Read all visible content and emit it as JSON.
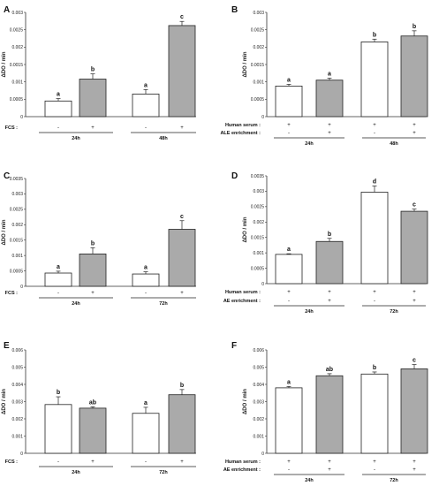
{
  "chart_data": [
    {
      "type": "bar",
      "panel": "A",
      "ylabel": "ΔDO / min",
      "ylim": [
        0,
        0.003
      ],
      "yticks": [
        "0",
        "0.0005",
        "0.001",
        "0.0015",
        "0.002",
        "0.0025",
        "0.003"
      ],
      "row_labels": [
        "FCS :"
      ],
      "row_signs": [
        [
          "-",
          "+",
          "-",
          "+"
        ]
      ],
      "groups": [
        "24h",
        "48h"
      ],
      "bars": [
        {
          "value": 0.00045,
          "error": 7e-05,
          "fill": "#ffffff",
          "sig": "a"
        },
        {
          "value": 0.00108,
          "error": 0.00015,
          "fill": "#aaaaaa",
          "sig": "b"
        },
        {
          "value": 0.00065,
          "error": 0.00013,
          "fill": "#ffffff",
          "sig": "a"
        },
        {
          "value": 0.00262,
          "error": 0.00012,
          "fill": "#aaaaaa",
          "sig": "c"
        }
      ]
    },
    {
      "type": "bar",
      "panel": "B",
      "ylabel": "ΔDO / min",
      "ylim": [
        0,
        0.003
      ],
      "yticks": [
        "0",
        "0.0005",
        "0.001",
        "0.0015",
        "0.002",
        "0.0025",
        "0.003"
      ],
      "row_labels": [
        "Human serum :",
        "ALE enrichment :"
      ],
      "row_signs": [
        [
          "+",
          "+",
          "+",
          "+"
        ],
        [
          "-",
          "+",
          "-",
          "+"
        ]
      ],
      "groups": [
        "24h",
        "48h"
      ],
      "bars": [
        {
          "value": 0.00088,
          "error": 5e-05,
          "fill": "#ffffff",
          "sig": "a"
        },
        {
          "value": 0.00105,
          "error": 6e-05,
          "fill": "#aaaaaa",
          "sig": "a"
        },
        {
          "value": 0.00215,
          "error": 8e-05,
          "fill": "#ffffff",
          "sig": "b"
        },
        {
          "value": 0.00232,
          "error": 0.00015,
          "fill": "#aaaaaa",
          "sig": "b"
        }
      ]
    },
    {
      "type": "bar",
      "panel": "C",
      "ylabel": "ΔDO / min",
      "ylim": [
        0,
        0.0035
      ],
      "yticks": [
        "0",
        "0.0005",
        "0.001",
        "0.0015",
        "0.002",
        "0.0025",
        "0.003",
        "0.0035"
      ],
      "row_labels": [
        "FCS :"
      ],
      "row_signs": [
        [
          "-",
          "+",
          "-",
          "+"
        ]
      ],
      "groups": [
        "24h",
        "72h"
      ],
      "bars": [
        {
          "value": 0.00043,
          "error": 6e-05,
          "fill": "#ffffff",
          "sig": "a"
        },
        {
          "value": 0.00105,
          "error": 0.0002,
          "fill": "#aaaaaa",
          "sig": "b"
        },
        {
          "value": 0.0004,
          "error": 7e-05,
          "fill": "#ffffff",
          "sig": "a"
        },
        {
          "value": 0.00185,
          "error": 0.00028,
          "fill": "#aaaaaa",
          "sig": "c"
        }
      ]
    },
    {
      "type": "bar",
      "panel": "D",
      "ylabel": "ΔDO / min",
      "ylim": [
        0,
        0.0035
      ],
      "yticks": [
        "0",
        "0.0005",
        "0.001",
        "0.0015",
        "0.002",
        "0.0025",
        "0.003",
        "0.0035"
      ],
      "row_labels": [
        "Human serum :",
        "AE enrichment :"
      ],
      "row_signs": [
        [
          "+",
          "+",
          "+",
          "+"
        ],
        [
          "-",
          "+",
          "-",
          "+"
        ]
      ],
      "groups": [
        "24h",
        "72h"
      ],
      "bars": [
        {
          "value": 0.00095,
          "error": 2e-05,
          "fill": "#ffffff",
          "sig": "a"
        },
        {
          "value": 0.00137,
          "error": 0.0001,
          "fill": "#aaaaaa",
          "sig": "b"
        },
        {
          "value": 0.00297,
          "error": 0.0002,
          "fill": "#ffffff",
          "sig": "d"
        },
        {
          "value": 0.00235,
          "error": 7e-05,
          "fill": "#aaaaaa",
          "sig": "c"
        }
      ]
    },
    {
      "type": "bar",
      "panel": "E",
      "ylabel": "ΔDO / min",
      "ylim": [
        0,
        0.006
      ],
      "yticks": [
        "0",
        "0.001",
        "0.002",
        "0.003",
        "0.004",
        "0.005",
        "0.006"
      ],
      "row_labels": [
        "FCS :"
      ],
      "row_signs": [
        [
          "-",
          "+",
          "-",
          "+"
        ]
      ],
      "groups": [
        "24h",
        "72h"
      ],
      "bars": [
        {
          "value": 0.00283,
          "error": 0.00045,
          "fill": "#ffffff",
          "sig": "b"
        },
        {
          "value": 0.00262,
          "error": 8e-05,
          "fill": "#aaaaaa",
          "sig": "ab"
        },
        {
          "value": 0.00232,
          "error": 0.00035,
          "fill": "#ffffff",
          "sig": "a"
        },
        {
          "value": 0.0034,
          "error": 0.0003,
          "fill": "#aaaaaa",
          "sig": "b"
        }
      ]
    },
    {
      "type": "bar",
      "panel": "F",
      "ylabel": "ΔDO / min",
      "ylim": [
        0,
        0.006
      ],
      "yticks": [
        "0",
        "0.001",
        "0.002",
        "0.003",
        "0.004",
        "0.005",
        "0.006"
      ],
      "row_labels": [
        "Human serum :",
        "AE enrichment :"
      ],
      "row_signs": [
        [
          "+",
          "+",
          "+",
          "+"
        ],
        [
          "-",
          "+",
          "-",
          "+"
        ]
      ],
      "groups": [
        "24h",
        "72h"
      ],
      "bars": [
        {
          "value": 0.0038,
          "error": 8e-05,
          "fill": "#ffffff",
          "sig": "a"
        },
        {
          "value": 0.0045,
          "error": 0.00012,
          "fill": "#aaaaaa",
          "sig": "ab"
        },
        {
          "value": 0.0046,
          "error": 0.00012,
          "fill": "#ffffff",
          "sig": "b"
        },
        {
          "value": 0.0049,
          "error": 0.00025,
          "fill": "#aaaaaa",
          "sig": "c"
        }
      ]
    }
  ]
}
